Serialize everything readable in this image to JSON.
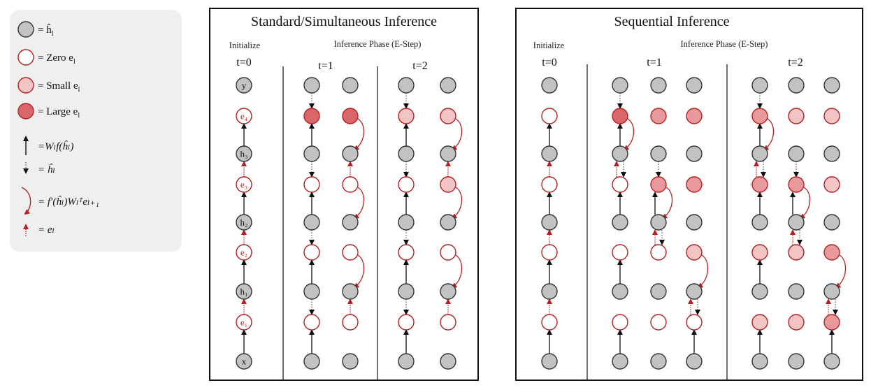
{
  "legend": {
    "items": [
      {
        "kind": "node",
        "style": "gray",
        "text": "= ĥ",
        "sub": "l"
      },
      {
        "kind": "node",
        "style": "zero",
        "text": "= Zero e",
        "sub": "l"
      },
      {
        "kind": "node",
        "style": "small",
        "text": "= Small e",
        "sub": "l"
      },
      {
        "kind": "node",
        "style": "large",
        "text": "= Large e",
        "sub": "l"
      },
      {
        "kind": "arrow",
        "style": "black-up",
        "formula": "=Wₗf(ĥₗ)"
      },
      {
        "kind": "arrow",
        "style": "dotted-down",
        "formula": "= ĥₗ"
      },
      {
        "kind": "arrow",
        "style": "red-curve",
        "formula": "= f′(ĥₗ)Wₗᵀeₗ₊₁"
      },
      {
        "kind": "arrow",
        "style": "red-up",
        "formula": "= eₗ"
      }
    ]
  },
  "colors": {
    "gray": "#c2c2c2",
    "zero": "#ffffff",
    "small": "#f2c4c4",
    "medium": "#e8999b",
    "large": "#d9676a",
    "red_stroke": "#b22222",
    "arrow_black": "#111111",
    "arrow_red": "#b22222",
    "legend_bg": "#efefef"
  },
  "row_labels": [
    "y",
    "e₄",
    "h₃",
    "e₃",
    "h₂",
    "e₂",
    "h₁",
    "e₁",
    "x"
  ],
  "panels": [
    {
      "title": "Standard/Simultaneous Inference",
      "init_label": "Initialize",
      "phase_label": "Inference Phase (E-Step)",
      "t_labels": [
        "t=0",
        "t=1",
        "t=2"
      ],
      "init_column": [
        "gray",
        "zero",
        "gray",
        "zero",
        "gray",
        "zero",
        "gray",
        "zero",
        "gray"
      ],
      "columns": [
        [
          "gray",
          "large",
          "gray",
          "zero",
          "gray",
          "zero",
          "gray",
          "zero",
          "gray"
        ],
        [
          "gray",
          "large",
          "gray",
          "zero",
          "gray",
          "zero",
          "gray",
          "zero",
          "gray"
        ],
        [
          "gray",
          "small",
          "gray",
          "zero",
          "gray",
          "zero",
          "gray",
          "zero",
          "gray"
        ],
        [
          "gray",
          "small",
          "gray",
          "small",
          "gray",
          "zero",
          "gray",
          "zero",
          "gray"
        ]
      ]
    },
    {
      "title": "Sequential Inference",
      "init_label": "Initialize",
      "phase_label": "Inference Phase (E-Step)",
      "t_labels": [
        "t=0",
        "t=1",
        "t=2"
      ],
      "init_column": [
        "gray",
        "zero",
        "gray",
        "zero",
        "gray",
        "zero",
        "gray",
        "zero",
        "gray"
      ],
      "columns": [
        [
          "gray",
          "large",
          "gray",
          "zero",
          "gray",
          "zero",
          "gray",
          "zero",
          "gray"
        ],
        [
          "gray",
          "medium",
          "gray",
          "medium",
          "gray",
          "zero",
          "gray",
          "zero",
          "gray"
        ],
        [
          "gray",
          "medium",
          "gray",
          "medium",
          "gray",
          "small",
          "gray",
          "zero",
          "gray"
        ],
        [
          "gray",
          "medium",
          "gray",
          "medium",
          "gray",
          "small",
          "gray",
          "small",
          "gray"
        ],
        [
          "gray",
          "small",
          "gray",
          "medium",
          "gray",
          "small",
          "gray",
          "small",
          "gray"
        ],
        [
          "gray",
          "small",
          "gray",
          "small",
          "gray",
          "medium",
          "gray",
          "medium",
          "gray"
        ]
      ]
    }
  ]
}
